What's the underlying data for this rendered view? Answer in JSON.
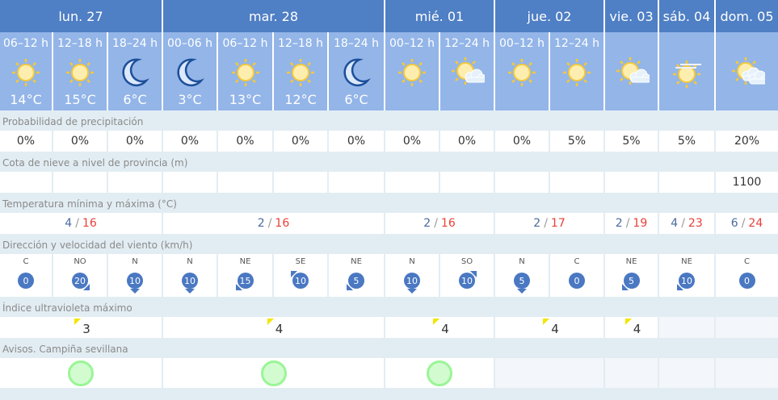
{
  "days": [
    {
      "label": "lun. 27",
      "span": 3,
      "temp_min": "4",
      "temp_max": "16",
      "uv": "3",
      "aviso": "green"
    },
    {
      "label": "mar. 28",
      "span": 4,
      "temp_min": "2",
      "temp_max": "16",
      "uv": "4",
      "aviso": "green"
    },
    {
      "label": "mié. 01",
      "span": 2,
      "temp_min": "2",
      "temp_max": "16",
      "uv": "4",
      "aviso": "green"
    },
    {
      "label": "jue. 02",
      "span": 2,
      "temp_min": "2",
      "temp_max": "17",
      "uv": "4",
      "aviso": ""
    },
    {
      "label": "vie. 03",
      "span": 1,
      "temp_min": "2",
      "temp_max": "19",
      "uv": "4",
      "aviso": ""
    },
    {
      "label": "sáb. 04",
      "span": 1,
      "temp_min": "4",
      "temp_max": "23",
      "uv": "",
      "aviso": ""
    },
    {
      "label": "dom. 05",
      "span": 1,
      "temp_min": "6",
      "temp_max": "24",
      "uv": "",
      "aviso": ""
    }
  ],
  "periods": [
    {
      "period": "06–12 h",
      "icon": "sun",
      "temp": "14°C",
      "precip": "0%",
      "snow": "",
      "wind_dir": "C",
      "wind_speed": "0"
    },
    {
      "period": "12–18 h",
      "icon": "sun",
      "temp": "15°C",
      "precip": "0%",
      "snow": "",
      "wind_dir": "NO",
      "wind_speed": "20"
    },
    {
      "period": "18–24 h",
      "icon": "moon",
      "temp": "6°C",
      "precip": "0%",
      "snow": "",
      "wind_dir": "N",
      "wind_speed": "10"
    },
    {
      "period": "00–06 h",
      "icon": "moon",
      "temp": "3°C",
      "precip": "0%",
      "snow": "",
      "wind_dir": "N",
      "wind_speed": "10"
    },
    {
      "period": "06–12 h",
      "icon": "sun",
      "temp": "13°C",
      "precip": "0%",
      "snow": "",
      "wind_dir": "NE",
      "wind_speed": "15"
    },
    {
      "period": "12–18 h",
      "icon": "sun",
      "temp": "12°C",
      "precip": "0%",
      "snow": "",
      "wind_dir": "SE",
      "wind_speed": "10"
    },
    {
      "period": "18–24 h",
      "icon": "moon",
      "temp": "6°C",
      "precip": "0%",
      "snow": "",
      "wind_dir": "NE",
      "wind_speed": "5"
    },
    {
      "period": "00–12 h",
      "icon": "sun",
      "temp": "",
      "precip": "0%",
      "snow": "",
      "wind_dir": "N",
      "wind_speed": "10"
    },
    {
      "period": "12–24 h",
      "icon": "sun-cloud",
      "temp": "",
      "precip": "0%",
      "snow": "",
      "wind_dir": "SO",
      "wind_speed": "10"
    },
    {
      "period": "00–12 h",
      "icon": "sun",
      "temp": "",
      "precip": "0%",
      "snow": "",
      "wind_dir": "N",
      "wind_speed": "5"
    },
    {
      "period": "12–24 h",
      "icon": "sun",
      "temp": "",
      "precip": "5%",
      "snow": "",
      "wind_dir": "C",
      "wind_speed": "0"
    },
    {
      "period": "",
      "icon": "sun-cloud",
      "temp": "",
      "precip": "5%",
      "snow": "",
      "wind_dir": "NE",
      "wind_speed": "5"
    },
    {
      "period": "",
      "icon": "sun-haze",
      "temp": "",
      "precip": "5%",
      "snow": "",
      "wind_dir": "NE",
      "wind_speed": "10"
    },
    {
      "period": "",
      "icon": "sun-clouds",
      "temp": "",
      "precip": "20%",
      "snow": "1100",
      "wind_dir": "C",
      "wind_speed": "0"
    }
  ],
  "labels": {
    "precip": "Probabilidad de precipitación",
    "snow": "Cota de nieve a nivel de provincia (m)",
    "temp": "Temperatura mínima y máxima (°C)",
    "wind": "Dirección y velocidad del viento (km/h)",
    "uv": "Índice ultravioleta máximo",
    "avisos": "Avisos. Campiña sevillana"
  },
  "colors": {
    "header": "#4f7fc4",
    "subheader": "#93b5e8",
    "max": "#e8403a",
    "min": "#4a6aa0",
    "wind": "#4a78c2",
    "uv": "#f2e600",
    "aviso_green": "#9af596"
  }
}
